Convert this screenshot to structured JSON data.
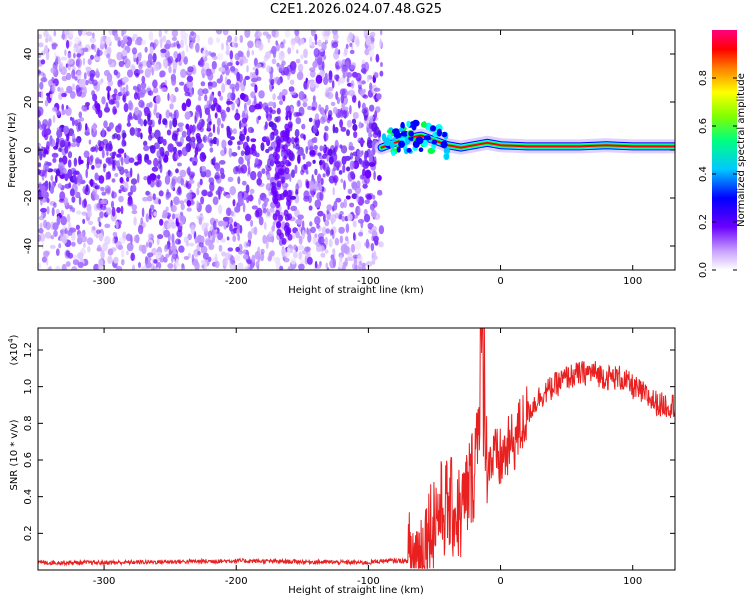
{
  "title": "C2E1.2026.024.07.48.G25",
  "colors": {
    "snr_line": "#e82020",
    "spectrogram_scatter": "#6a00ff",
    "spectrogram_band": [
      "#0000ff",
      "#00ffff",
      "#00ff00",
      "#ffff00",
      "#ff0000",
      "#ff00ff"
    ]
  },
  "chart_data": [
    {
      "type": "heatmap",
      "name": "spectrogram",
      "xlabel": "Height of straight line (km)",
      "ylabel": "Frequency (Hz)",
      "xlim": [
        -350,
        132
      ],
      "ylim": [
        -50,
        50
      ],
      "xticks": [
        -300,
        -200,
        -100,
        0,
        100
      ],
      "yticks": [
        -40,
        -20,
        0,
        20,
        40
      ],
      "xtick_labels": [
        "-300",
        "-200",
        "-100",
        "0",
        "100"
      ],
      "ytick_labels": [
        "-40",
        "-20",
        "0",
        "20",
        "40"
      ],
      "noise_region_x": [
        -350,
        -90
      ],
      "signal_band": {
        "x": [
          -90,
          -80,
          -70,
          -60,
          -50,
          -40,
          -30,
          -20,
          -10,
          0,
          20,
          40,
          60,
          80,
          100,
          132
        ],
        "freq": [
          1,
          3,
          5,
          6,
          4,
          2,
          1,
          2,
          3,
          2,
          1.5,
          1.5,
          1.5,
          2,
          1.5,
          1.5
        ]
      },
      "colorbar": {
        "label": "Normalized spectral amplitude",
        "range": [
          0,
          1
        ],
        "ticks": [
          0.0,
          0.2,
          0.4,
          0.6,
          0.8
        ],
        "tick_labels": [
          "0.0",
          "0.2",
          "0.4",
          "0.6",
          "0.8"
        ]
      }
    },
    {
      "type": "line",
      "name": "snr",
      "xlabel": "Height of straight line (km)",
      "ylabel": "SNR (10 * v/v)",
      "y_scale_label": "(x10",
      "y_scale_exponent": "4",
      "y_scale_close": ")",
      "xlim": [
        -350,
        132
      ],
      "ylim": [
        0,
        1.32
      ],
      "xticks": [
        -300,
        -200,
        -100,
        0,
        100
      ],
      "yticks": [
        0.2,
        0.4,
        0.6,
        0.8,
        1.0,
        1.2
      ],
      "xtick_labels": [
        "-300",
        "-200",
        "-100",
        "0",
        "100"
      ],
      "ytick_labels": [
        "0.2",
        "0.4",
        "0.6",
        "0.8",
        "1.0",
        "1.2"
      ],
      "series": [
        {
          "name": "SNR",
          "x": [
            -350,
            -300,
            -250,
            -200,
            -150,
            -100,
            -90,
            -70,
            -60,
            -50,
            -40,
            -30,
            -20,
            -15,
            -10,
            -5,
            0,
            10,
            20,
            30,
            40,
            50,
            60,
            70,
            80,
            90,
            100,
            110,
            120,
            132
          ],
          "y": [
            0.04,
            0.04,
            0.045,
            0.05,
            0.045,
            0.04,
            0.05,
            0.05,
            0.1,
            0.3,
            0.35,
            0.3,
            0.55,
            1.0,
            0.6,
            0.6,
            0.6,
            0.7,
            0.85,
            0.95,
            1.0,
            1.05,
            1.07,
            1.08,
            1.05,
            1.05,
            1.0,
            0.95,
            0.9,
            0.9
          ]
        }
      ]
    }
  ]
}
